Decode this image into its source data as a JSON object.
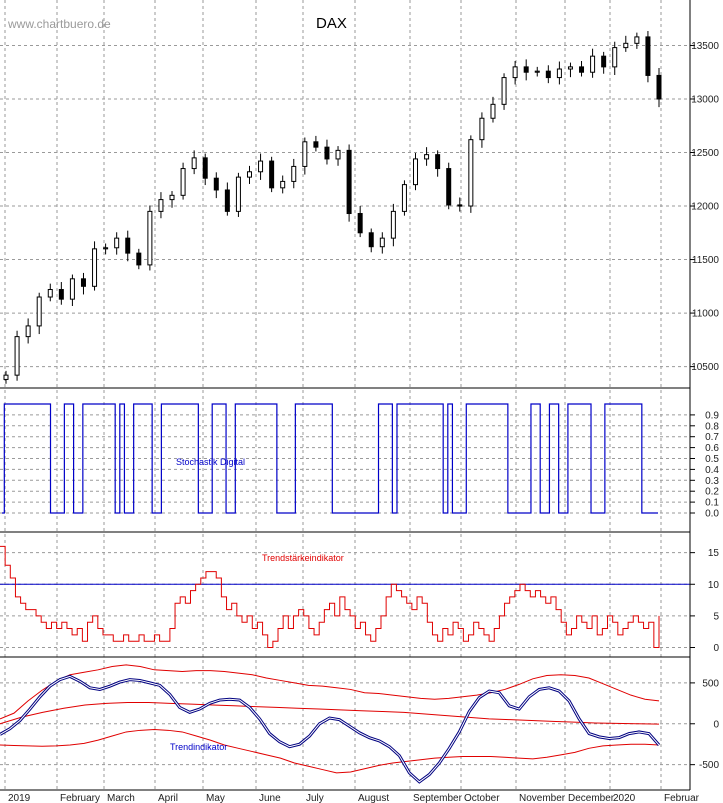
{
  "watermark": "www.chartbuero.de",
  "colors": {
    "candle": "#000000",
    "stochastic": "#0000c8",
    "trend_strength": "#e00000",
    "trend_indicator": "#000080",
    "bands": "#e00000",
    "grid": "#9a9a9a",
    "ref_line": "#0000c8"
  },
  "chart_data": [
    {
      "type": "candlestick",
      "title": "DAX",
      "y_ticks": [
        10500,
        11000,
        11500,
        12000,
        12500,
        13000,
        13500
      ],
      "ylim": [
        10300,
        13850
      ],
      "x_labels": [
        "2019",
        "February",
        "March",
        "April",
        "May",
        "June",
        "July",
        "August",
        "September",
        "October",
        "November",
        "December",
        "2020",
        "Februar"
      ],
      "series": [
        {
          "values": [
            10420,
            10780,
            10880,
            11150,
            11220,
            11130,
            11320,
            11250,
            11600,
            11610,
            11700,
            11560,
            11450,
            11950,
            12060,
            12100,
            12350,
            12450,
            12260,
            12150,
            11950,
            12270,
            12320,
            12420,
            12170,
            12230,
            12370,
            12600,
            12550,
            12440,
            12520,
            11930,
            11750,
            11620,
            11700,
            11950,
            12200,
            12440,
            12480,
            12350,
            12010,
            12000,
            12620,
            12820,
            12950,
            13200,
            13300,
            13250,
            13260,
            13200,
            13280,
            13300,
            13250,
            13400,
            13300,
            13480,
            13520,
            13580,
            13220,
            13000
          ]
        }
      ]
    },
    {
      "type": "line",
      "title": "Stochastik Digital",
      "y_ticks": [
        0.0,
        0.1,
        0.2,
        0.3,
        0.4,
        0.5,
        0.6,
        0.7,
        0.8,
        0.9
      ],
      "ylim": [
        0,
        1
      ],
      "series": [
        {
          "name": "Stochastik Digital",
          "values": [
            0,
            1,
            1,
            1,
            1,
            1,
            1,
            1,
            1,
            1,
            1,
            0,
            0,
            0,
            1,
            1,
            0,
            0,
            1,
            1,
            1,
            1,
            1,
            1,
            1,
            0,
            1,
            0,
            0,
            1,
            1,
            1,
            1,
            0,
            0,
            1,
            1,
            1,
            1,
            1,
            1,
            1,
            1,
            0,
            0,
            0,
            1,
            1,
            1,
            0,
            0,
            1,
            1,
            1,
            1,
            1,
            1,
            1,
            1,
            1,
            0,
            0,
            0,
            0,
            1,
            1,
            1,
            1,
            1,
            1,
            1,
            1,
            0,
            0,
            0,
            0,
            0,
            0,
            0,
            0,
            0,
            0,
            1,
            1,
            1,
            0,
            1,
            1,
            1,
            1,
            1,
            1,
            1,
            1,
            1,
            1,
            0,
            1,
            0,
            0,
            0,
            1,
            1,
            1,
            1,
            1,
            1,
            1,
            1,
            1,
            0,
            0,
            0,
            0,
            0,
            1,
            1,
            0,
            0,
            1,
            1,
            0,
            0,
            1,
            1,
            1,
            1,
            1,
            0,
            0,
            0,
            1,
            1,
            1,
            1,
            1,
            1,
            1,
            1,
            0,
            0,
            0,
            0
          ]
        }
      ]
    },
    {
      "type": "line",
      "title": "Trendstärkeindikator",
      "y_ticks": [
        0,
        5,
        10,
        15
      ],
      "ylim": [
        -1.5,
        17
      ],
      "reference_line": 10,
      "series": [
        {
          "name": "Trendstärkeindikator",
          "values": [
            16,
            13,
            11,
            8,
            7,
            6,
            6,
            5,
            4,
            3,
            4,
            3,
            4,
            3,
            2,
            3,
            1,
            4,
            5,
            3,
            2,
            2,
            1,
            1,
            2,
            1,
            1,
            2,
            1,
            1,
            2,
            1,
            1,
            3,
            7,
            8,
            7,
            9,
            10,
            11,
            12,
            12,
            11,
            8,
            6,
            7,
            5,
            4,
            5,
            3,
            4,
            2,
            0,
            1,
            3,
            5,
            3,
            5,
            6,
            5,
            3,
            2,
            4,
            6,
            7,
            5,
            8,
            6,
            5,
            3,
            4,
            2,
            1,
            3,
            5,
            8,
            10,
            9,
            8,
            7,
            6,
            8,
            7,
            4,
            2,
            1,
            3,
            2,
            4,
            3,
            1,
            2,
            4,
            3,
            2,
            1,
            3,
            5,
            7,
            8,
            9,
            10,
            9,
            8,
            9,
            8,
            7,
            8,
            6,
            4,
            2,
            3,
            5,
            4,
            3,
            5,
            2,
            3,
            5,
            4,
            2,
            3,
            4,
            5,
            4,
            3,
            4,
            0,
            5
          ]
        }
      ]
    },
    {
      "type": "line",
      "title": "Trendindikator",
      "y_ticks": [
        -500,
        0,
        500
      ],
      "ylim": [
        -810,
        780
      ],
      "series": [
        {
          "name": "Trendindikator",
          "values": [
            -130,
            -60,
            40,
            180,
            330,
            460,
            540,
            580,
            520,
            440,
            420,
            460,
            510,
            540,
            530,
            500,
            470,
            360,
            200,
            140,
            180,
            250,
            290,
            300,
            290,
            200,
            60,
            -120,
            -220,
            -280,
            -250,
            -150,
            0,
            70,
            50,
            -30,
            -110,
            -170,
            -210,
            -280,
            -390,
            -600,
            -710,
            -620,
            -480,
            -300,
            -100,
            150,
            320,
            400,
            380,
            220,
            180,
            330,
            420,
            440,
            400,
            280,
            60,
            -120,
            -160,
            -180,
            -170,
            -120,
            -100,
            -120,
            -260
          ]
        },
        {
          "name": "",
          "values": [
            60,
            130,
            280,
            410,
            520,
            600,
            630,
            660,
            700,
            720,
            700,
            660,
            650,
            640,
            650,
            650,
            640,
            620,
            600,
            560,
            530,
            500,
            470,
            460,
            440,
            420,
            380,
            370,
            350,
            330,
            310,
            300,
            310,
            330,
            350,
            380,
            420,
            480,
            550,
            590,
            600,
            590,
            560,
            490,
            420,
            350,
            300,
            280
          ]
        },
        {
          "name": "",
          "values": [
            0,
            80,
            140,
            190,
            230,
            250,
            260,
            260,
            250,
            240,
            230,
            220,
            210,
            200,
            190,
            180,
            170,
            160,
            150,
            140,
            120,
            100,
            80,
            60,
            50,
            40,
            30,
            20,
            10,
            5,
            0,
            -5
          ]
        },
        {
          "name": "",
          "values": [
            -260,
            -265,
            -270,
            -275,
            -270,
            -260,
            -240,
            -200,
            -150,
            -100,
            -80,
            -70,
            -80,
            -100,
            -150,
            -200,
            -260,
            -300,
            -340,
            -380,
            -420,
            -480,
            -520,
            -560,
            -600,
            -590,
            -550,
            -510,
            -480,
            -460,
            -440,
            -420,
            -410,
            -400,
            -400,
            -400,
            -410,
            -420,
            -430,
            -410,
            -380,
            -350,
            -300,
            -270,
            -260,
            -250,
            -250,
            -260
          ]
        }
      ]
    }
  ]
}
